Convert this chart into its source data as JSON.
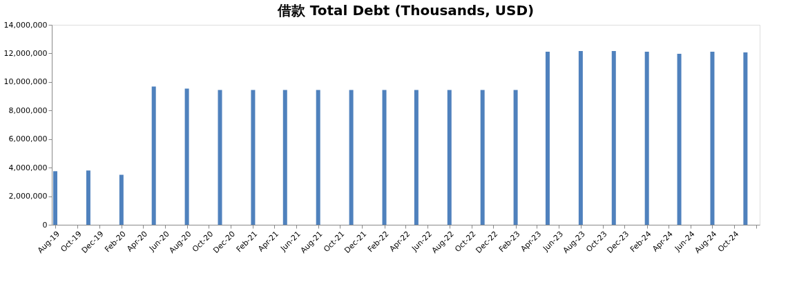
{
  "chart_data": {
    "type": "bar",
    "title": "借款 Total Debt (Thousands, USD)",
    "x": [
      "2019-08",
      "2019-11",
      "2020-02",
      "2020-05",
      "2020-08",
      "2020-11",
      "2021-02",
      "2021-05",
      "2021-08",
      "2021-11",
      "2022-02",
      "2022-05",
      "2022-08",
      "2022-11",
      "2023-02",
      "2023-05",
      "2023-08",
      "2023-11",
      "2024-02",
      "2024-05",
      "2024-08",
      "2024-11"
    ],
    "series": [
      {
        "color": "#4f81bd",
        "values": [
          3750000,
          3800000,
          3500000,
          9680000,
          9530000,
          9440000,
          9440000,
          9440000,
          9440000,
          9440000,
          9440000,
          9440000,
          9440000,
          9440000,
          9440000,
          12120000,
          12170000,
          12170000,
          12120000,
          11970000,
          12120000,
          12070000
        ]
      }
    ],
    "xlim": [
      "2019-08",
      "2024-12"
    ],
    "xticks": [
      {
        "value": "2019-08",
        "label": "Aug-19"
      },
      {
        "value": "2019-10",
        "label": "Oct-19"
      },
      {
        "value": "2019-12",
        "label": "Dec-19"
      },
      {
        "value": "2020-02",
        "label": "Feb-20"
      },
      {
        "value": "2020-04",
        "label": "Apr-20"
      },
      {
        "value": "2020-06",
        "label": "Jun-20"
      },
      {
        "value": "2020-08",
        "label": "Aug-20"
      },
      {
        "value": "2020-10",
        "label": "Oct-20"
      },
      {
        "value": "2020-12",
        "label": "Dec-20"
      },
      {
        "value": "2021-02",
        "label": "Feb-21"
      },
      {
        "value": "2021-04",
        "label": "Apr-21"
      },
      {
        "value": "2021-06",
        "label": "Jun-21"
      },
      {
        "value": "2021-08",
        "label": "Aug-21"
      },
      {
        "value": "2021-10",
        "label": "Oct-21"
      },
      {
        "value": "2021-12",
        "label": "Dec-21"
      },
      {
        "value": "2022-02",
        "label": "Feb-22"
      },
      {
        "value": "2022-04",
        "label": "Apr-22"
      },
      {
        "value": "2022-06",
        "label": "Jun-22"
      },
      {
        "value": "2022-08",
        "label": "Aug-22"
      },
      {
        "value": "2022-10",
        "label": "Oct-22"
      },
      {
        "value": "2022-12",
        "label": "Dec-22"
      },
      {
        "value": "2023-02",
        "label": "Feb-23"
      },
      {
        "value": "2023-04",
        "label": "Apr-23"
      },
      {
        "value": "2023-06",
        "label": "Jun-23"
      },
      {
        "value": "2023-08",
        "label": "Aug-23"
      },
      {
        "value": "2023-10",
        "label": "Oct-23"
      },
      {
        "value": "2023-12",
        "label": "Dec-23"
      },
      {
        "value": "2024-02",
        "label": "Feb-24"
      },
      {
        "value": "2024-04",
        "label": "Apr-24"
      },
      {
        "value": "2024-06",
        "label": "Jun-24"
      },
      {
        "value": "2024-08",
        "label": "Aug-24"
      },
      {
        "value": "2024-10",
        "label": "Oct-24"
      },
      {
        "value": "2024-12",
        "label": null
      }
    ],
    "ylim": [
      0,
      14000000
    ],
    "yticks": [
      {
        "value": 0,
        "label": "0"
      },
      {
        "value": 2000000,
        "label": "2,000,000"
      },
      {
        "value": 4000000,
        "label": "4,000,000"
      },
      {
        "value": 6000000,
        "label": "6,000,000"
      },
      {
        "value": 8000000,
        "label": "8,000,000"
      },
      {
        "value": 10000000,
        "label": "10,000,000"
      },
      {
        "value": 12000000,
        "label": "12,000,000"
      },
      {
        "value": 14000000,
        "label": "14,000,000"
      }
    ],
    "grid": false,
    "legend": false
  }
}
